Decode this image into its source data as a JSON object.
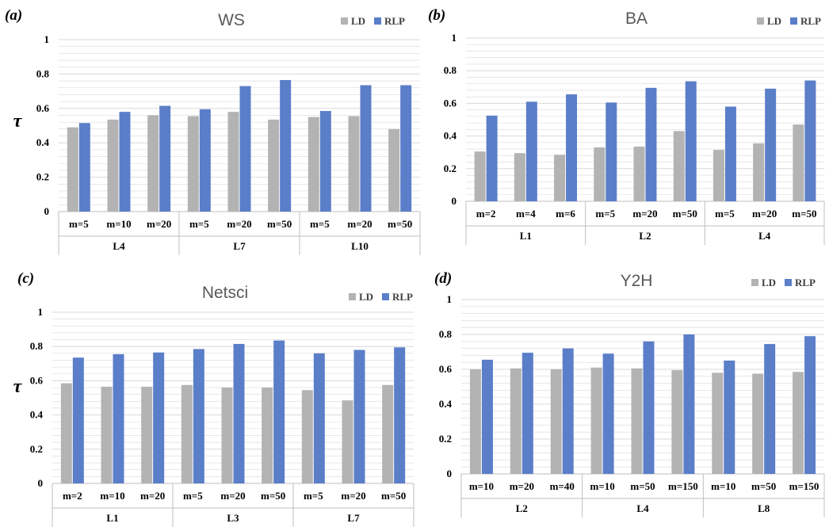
{
  "colors": {
    "LD": "#b3b3b3",
    "RLP": "#5b7ec9",
    "grid": "#d9d9d9",
    "axis": "#bfbfbf"
  },
  "chart_data": [
    {
      "type": "bar",
      "panel_label": "(a)",
      "title": "WS",
      "ylabel": "τ",
      "ylim": [
        0,
        1
      ],
      "yticks": [
        "0",
        "0.2",
        "0.4",
        "0.6",
        "0.8",
        "1"
      ],
      "categories": [
        "m=5",
        "m=10",
        "m=20",
        "m=5",
        "m=20",
        "m=50",
        "m=5",
        "m=20",
        "m=50"
      ],
      "groups": [
        {
          "label": "L4",
          "size": 3
        },
        {
          "label": "L7",
          "size": 3
        },
        {
          "label": "L10",
          "size": 3
        }
      ],
      "series": [
        {
          "name": "LD",
          "values": [
            0.49,
            0.535,
            0.56,
            0.555,
            0.58,
            0.535,
            0.55,
            0.555,
            0.48
          ]
        },
        {
          "name": "RLP",
          "values": [
            0.515,
            0.58,
            0.615,
            0.595,
            0.73,
            0.765,
            0.585,
            0.735,
            0.735
          ]
        }
      ],
      "legend": "top-right"
    },
    {
      "type": "bar",
      "panel_label": "(b)",
      "title": "BA",
      "ylabel": "",
      "ylim": [
        0,
        1
      ],
      "yticks": [
        "0",
        "0.2",
        "0.4",
        "0.6",
        "0.8",
        "1"
      ],
      "categories": [
        "m=2",
        "m=4",
        "m=6",
        "m=5",
        "m=20",
        "m=50",
        "m=5",
        "m=20",
        "m=50"
      ],
      "groups": [
        {
          "label": "L1",
          "size": 3
        },
        {
          "label": "L2",
          "size": 3
        },
        {
          "label": "L4",
          "size": 3
        }
      ],
      "series": [
        {
          "name": "LD",
          "values": [
            0.305,
            0.295,
            0.285,
            0.33,
            0.335,
            0.43,
            0.315,
            0.355,
            0.47
          ]
        },
        {
          "name": "RLP",
          "values": [
            0.525,
            0.61,
            0.655,
            0.605,
            0.695,
            0.735,
            0.58,
            0.69,
            0.74
          ]
        }
      ],
      "legend": "top-right"
    },
    {
      "type": "bar",
      "panel_label": "(c)",
      "title": "Netsci",
      "ylabel": "τ",
      "ylim": [
        0,
        1
      ],
      "yticks": [
        "0",
        "0.2",
        "0.4",
        "0.6",
        "0.8",
        "1"
      ],
      "categories": [
        "m=2",
        "m=10",
        "m=20",
        "m=5",
        "m=20",
        "m=50",
        "m=5",
        "m=20",
        "m=50"
      ],
      "groups": [
        {
          "label": "L1",
          "size": 3
        },
        {
          "label": "L3",
          "size": 3
        },
        {
          "label": "L7",
          "size": 3
        }
      ],
      "series": [
        {
          "name": "LD",
          "values": [
            0.585,
            0.565,
            0.565,
            0.575,
            0.56,
            0.56,
            0.545,
            0.485,
            0.575
          ]
        },
        {
          "name": "RLP",
          "values": [
            0.735,
            0.755,
            0.765,
            0.785,
            0.815,
            0.835,
            0.76,
            0.78,
            0.795
          ]
        }
      ],
      "legend": "top-right"
    },
    {
      "type": "bar",
      "panel_label": "(d)",
      "title": "Y2H",
      "ylabel": "",
      "ylim": [
        0,
        1
      ],
      "yticks": [
        "0",
        "0.2",
        "0.4",
        "0.6",
        "0.8",
        "1"
      ],
      "categories": [
        "m=10",
        "m=20",
        "m=40",
        "m=10",
        "m=50",
        "m=150",
        "m=10",
        "m=50",
        "m=150"
      ],
      "groups": [
        {
          "label": "L2",
          "size": 3
        },
        {
          "label": "L4",
          "size": 3
        },
        {
          "label": "L8",
          "size": 3
        }
      ],
      "series": [
        {
          "name": "LD",
          "values": [
            0.6,
            0.605,
            0.6,
            0.61,
            0.605,
            0.595,
            0.58,
            0.575,
            0.585
          ]
        },
        {
          "name": "RLP",
          "values": [
            0.655,
            0.695,
            0.72,
            0.69,
            0.76,
            0.8,
            0.65,
            0.745,
            0.79
          ]
        }
      ],
      "legend": "top-right"
    }
  ]
}
